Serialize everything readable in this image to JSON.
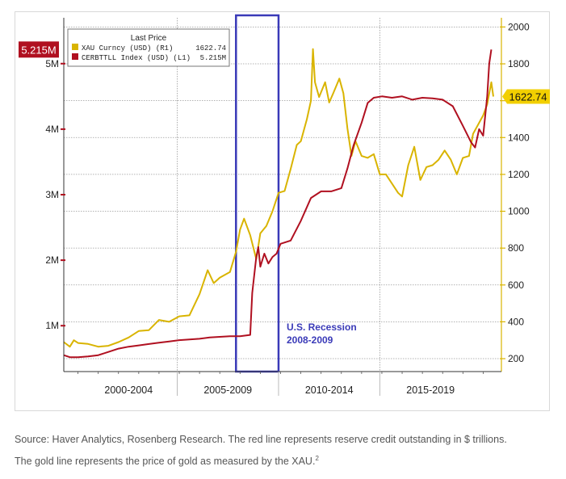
{
  "chart_data": {
    "type": "line",
    "legend": {
      "header": "Last Price",
      "entries": [
        {
          "label": "XAU Curncy (USD)  (R1)",
          "value": "1622.74",
          "color": "#d9b400"
        },
        {
          "label": "CERBTTLL Index (USD)  (L1)",
          "value": "5.215M",
          "color": "#b01020"
        }
      ]
    },
    "x_labels": [
      "2000-2004",
      "2005-2009",
      "2010-2014",
      "2015-2019"
    ],
    "x_range": [
      1999.3,
      2020.9
    ],
    "left_axis": {
      "ticks": [
        "1M",
        "2M",
        "3M",
        "4M",
        "5M"
      ],
      "tick_values": [
        1,
        2,
        3,
        4,
        5
      ],
      "range": [
        0.3,
        5.7
      ],
      "last_value": "5.215M"
    },
    "right_axis": {
      "ticks": [
        "200",
        "400",
        "600",
        "800",
        "1000",
        "1200",
        "1400",
        "1600",
        "1800",
        "2000"
      ],
      "tick_values": [
        200,
        400,
        600,
        800,
        1000,
        1200,
        1400,
        1600,
        1800,
        2000
      ],
      "range": [
        130,
        2050
      ],
      "last_value": "1622.74"
    },
    "recession_box": {
      "x_start": 2007.8,
      "x_end": 2009.9
    },
    "recession_label": [
      "U.S. Recession",
      "2008-2009"
    ],
    "series": [
      {
        "name": "XAU Curncy (USD)",
        "axis": "right",
        "color": "#d9b400",
        "points": [
          [
            1999.3,
            290
          ],
          [
            1999.6,
            265
          ],
          [
            1999.8,
            300
          ],
          [
            2000.0,
            285
          ],
          [
            2000.5,
            280
          ],
          [
            2001.0,
            265
          ],
          [
            2001.5,
            270
          ],
          [
            2002.0,
            290
          ],
          [
            2002.5,
            315
          ],
          [
            2003.0,
            350
          ],
          [
            2003.5,
            355
          ],
          [
            2004.0,
            410
          ],
          [
            2004.5,
            400
          ],
          [
            2005.0,
            430
          ],
          [
            2005.5,
            435
          ],
          [
            2006.0,
            550
          ],
          [
            2006.4,
            680
          ],
          [
            2006.7,
            610
          ],
          [
            2007.0,
            640
          ],
          [
            2007.5,
            670
          ],
          [
            2007.8,
            780
          ],
          [
            2008.0,
            900
          ],
          [
            2008.2,
            960
          ],
          [
            2008.5,
            870
          ],
          [
            2008.8,
            740
          ],
          [
            2009.0,
            880
          ],
          [
            2009.3,
            920
          ],
          [
            2009.6,
            1000
          ],
          [
            2009.9,
            1100
          ],
          [
            2010.2,
            1110
          ],
          [
            2010.5,
            1230
          ],
          [
            2010.8,
            1360
          ],
          [
            2011.0,
            1380
          ],
          [
            2011.3,
            1500
          ],
          [
            2011.5,
            1600
          ],
          [
            2011.6,
            1880
          ],
          [
            2011.7,
            1700
          ],
          [
            2011.9,
            1620
          ],
          [
            2012.2,
            1700
          ],
          [
            2012.4,
            1590
          ],
          [
            2012.6,
            1640
          ],
          [
            2012.9,
            1720
          ],
          [
            2013.1,
            1640
          ],
          [
            2013.3,
            1450
          ],
          [
            2013.5,
            1300
          ],
          [
            2013.7,
            1380
          ],
          [
            2014.0,
            1300
          ],
          [
            2014.3,
            1290
          ],
          [
            2014.6,
            1310
          ],
          [
            2014.9,
            1200
          ],
          [
            2015.2,
            1200
          ],
          [
            2015.5,
            1150
          ],
          [
            2015.8,
            1100
          ],
          [
            2016.0,
            1080
          ],
          [
            2016.3,
            1250
          ],
          [
            2016.6,
            1350
          ],
          [
            2016.9,
            1170
          ],
          [
            2017.2,
            1240
          ],
          [
            2017.5,
            1250
          ],
          [
            2017.8,
            1280
          ],
          [
            2018.1,
            1330
          ],
          [
            2018.4,
            1280
          ],
          [
            2018.7,
            1200
          ],
          [
            2019.0,
            1290
          ],
          [
            2019.3,
            1300
          ],
          [
            2019.5,
            1420
          ],
          [
            2019.8,
            1480
          ],
          [
            2020.0,
            1520
          ],
          [
            2020.2,
            1580
          ],
          [
            2020.4,
            1700
          ],
          [
            2020.5,
            1622.74
          ]
        ]
      },
      {
        "name": "CERBTTLL Index (USD)",
        "axis": "left",
        "color": "#b01020",
        "points": [
          [
            1999.3,
            0.55
          ],
          [
            1999.6,
            0.52
          ],
          [
            2000.0,
            0.52
          ],
          [
            2000.5,
            0.53
          ],
          [
            2001.0,
            0.55
          ],
          [
            2001.5,
            0.6
          ],
          [
            2002.0,
            0.65
          ],
          [
            2002.5,
            0.68
          ],
          [
            2003.0,
            0.7
          ],
          [
            2003.5,
            0.72
          ],
          [
            2004.0,
            0.74
          ],
          [
            2004.5,
            0.76
          ],
          [
            2005.0,
            0.78
          ],
          [
            2005.5,
            0.79
          ],
          [
            2006.0,
            0.8
          ],
          [
            2006.5,
            0.82
          ],
          [
            2007.0,
            0.83
          ],
          [
            2007.5,
            0.84
          ],
          [
            2008.0,
            0.84
          ],
          [
            2008.5,
            0.86
          ],
          [
            2008.6,
            1.5
          ],
          [
            2008.8,
            2.05
          ],
          [
            2008.9,
            2.2
          ],
          [
            2009.0,
            1.9
          ],
          [
            2009.2,
            2.1
          ],
          [
            2009.4,
            1.95
          ],
          [
            2009.6,
            2.05
          ],
          [
            2009.8,
            2.1
          ],
          [
            2010.0,
            2.25
          ],
          [
            2010.5,
            2.3
          ],
          [
            2011.0,
            2.6
          ],
          [
            2011.5,
            2.95
          ],
          [
            2012.0,
            3.05
          ],
          [
            2012.5,
            3.05
          ],
          [
            2013.0,
            3.1
          ],
          [
            2013.3,
            3.4
          ],
          [
            2013.6,
            3.75
          ],
          [
            2014.0,
            4.1
          ],
          [
            2014.3,
            4.4
          ],
          [
            2014.6,
            4.48
          ],
          [
            2015.0,
            4.5
          ],
          [
            2015.5,
            4.48
          ],
          [
            2016.0,
            4.5
          ],
          [
            2016.5,
            4.45
          ],
          [
            2017.0,
            4.48
          ],
          [
            2017.5,
            4.47
          ],
          [
            2018.0,
            4.45
          ],
          [
            2018.5,
            4.35
          ],
          [
            2019.0,
            4.05
          ],
          [
            2019.4,
            3.8
          ],
          [
            2019.6,
            3.72
          ],
          [
            2019.8,
            4.0
          ],
          [
            2020.0,
            3.9
          ],
          [
            2020.2,
            4.5
          ],
          [
            2020.3,
            5.0
          ],
          [
            2020.4,
            5.215
          ]
        ]
      }
    ]
  },
  "captions": {
    "line1": "Source: Haver Analytics, Rosenberg Research. The red line represents reserve credit outstanding in $ trillions.",
    "line2": "The gold line represents the price of gold as measured by the XAU.",
    "footnote": "2"
  }
}
